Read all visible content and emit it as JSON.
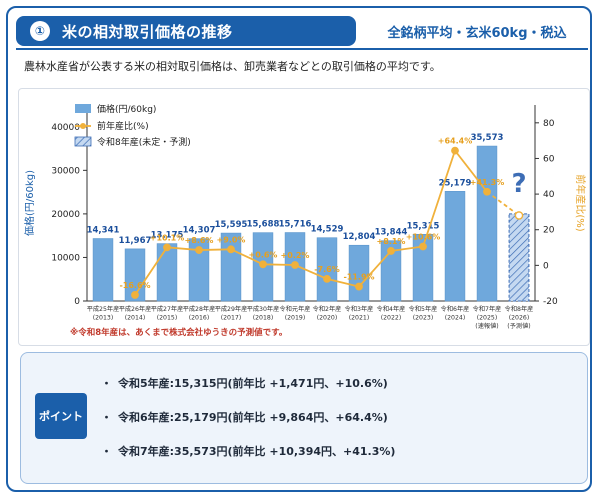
{
  "header": {
    "number": "①",
    "title": "米の相対取引価格の推移",
    "subtitle": "全銘柄平均・玄米60kg・税込"
  },
  "description": "農林水産省が公表する米の相対取引価格は、卸売業者などとの取引価格の平均です。",
  "note": "※令和8年産は、あくまで株式会社ゆうきの予測値です。",
  "legend": {
    "price": "価格(円/60kg)",
    "yoy": "前年産比(%)",
    "forecast": "令和8年産(未定・予測)"
  },
  "colors": {
    "bar": "#6fa8dc",
    "bar_stroke": "#5b95cc",
    "value_label": "#1b4f9c",
    "line": "#f0b13b",
    "line_label": "#e6a020",
    "forecast_fill": "#c5d9f1",
    "forecast_hatch": "#3d6db5",
    "question": "#3d6db5",
    "accent": "#1b5faa"
  },
  "points": {
    "badge": "ポイント",
    "items": [
      "令和5年産:15,315円(前年比 +1,471円、+10.6%)",
      "令和6年産:25,179円(前年比 +9,864円、+64.4%)",
      "令和7年産:35,573円(前年比 +10,394円、+41.3%)"
    ]
  },
  "chart_data": {
    "type": "bar",
    "categories": [
      [
        "平成25年産",
        "(2013)"
      ],
      [
        "平成26年産",
        "(2014)"
      ],
      [
        "平成27年産",
        "(2015)"
      ],
      [
        "平成28年産",
        "(2016)"
      ],
      [
        "平成29年産",
        "(2017)"
      ],
      [
        "平成30年産",
        "(2018)"
      ],
      [
        "令和元年産",
        "(2019)"
      ],
      [
        "令和2年産",
        "(2020)"
      ],
      [
        "令和3年産",
        "(2021)"
      ],
      [
        "令和4年産",
        "(2022)"
      ],
      [
        "令和5年産",
        "(2023)"
      ],
      [
        "令和6年産",
        "(2024)"
      ],
      [
        "令和7年産",
        "(2025)",
        "(速報値)"
      ],
      [
        "令和8年産",
        "(2026)",
        "(予測値)"
      ]
    ],
    "series": [
      {
        "name": "価格(円/60kg)",
        "values": [
          14341,
          11967,
          13175,
          14307,
          15595,
          15688,
          15716,
          14529,
          12804,
          13844,
          15315,
          25179,
          35573,
          20000
        ],
        "labels": [
          "14,341",
          "11,967",
          "13,175",
          "14,307",
          "15,595",
          "15,688",
          "15,716",
          "14,529",
          "12,804",
          "13,844",
          "15,315",
          "25,179",
          "35,573",
          ""
        ]
      },
      {
        "name": "前年産比(%)",
        "values": [
          null,
          -16.6,
          10.1,
          8.6,
          9.0,
          0.6,
          0.2,
          -7.6,
          -11.9,
          8.1,
          10.6,
          64.4,
          41.3,
          28.0
        ],
        "labels": [
          "",
          "-16.6%",
          "+10.1%",
          "+8.6%",
          "+9.0%",
          "+0.6%",
          "+0.2%",
          "-7.6%",
          "-11.9%",
          "+8.1%",
          "+10.6%",
          "+64.4%",
          "+41.3%",
          ""
        ]
      }
    ],
    "forecast_index": 13,
    "forecast_mark": "?",
    "ylabel": "価格(円/60kg)",
    "ylabel_right": "前年産比(%)",
    "ylim": [
      0,
      45000
    ],
    "yticks": [
      0,
      10000,
      20000,
      30000,
      40000
    ],
    "ylim_right": [
      -20,
      90
    ],
    "yticks_right": [
      -20,
      0,
      20,
      40,
      60,
      80
    ],
    "grid": false,
    "legend_position": "top-left"
  }
}
